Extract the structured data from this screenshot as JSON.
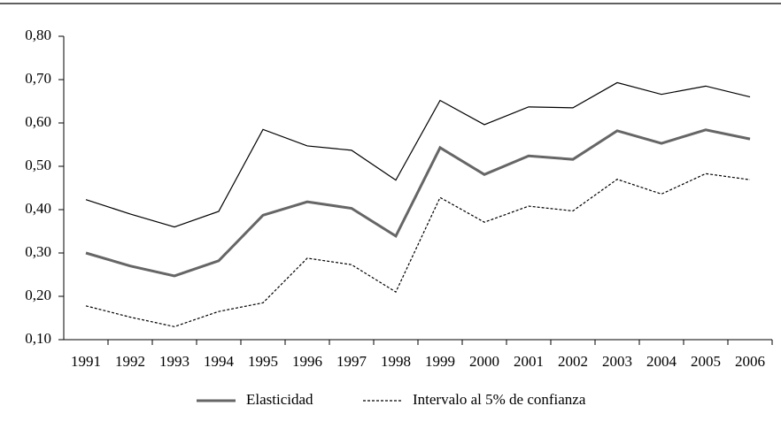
{
  "chart_data": {
    "type": "line",
    "categories": [
      "1991",
      "1992",
      "1993",
      "1994",
      "1995",
      "1996",
      "1997",
      "1998",
      "1999",
      "2000",
      "2001",
      "2002",
      "2003",
      "2004",
      "2005",
      "2006"
    ],
    "series": [
      {
        "name": "Elasticidad",
        "color": "#666666",
        "values": [
          0.3,
          0.27,
          0.247,
          0.282,
          0.387,
          0.418,
          0.403,
          0.339,
          0.543,
          0.481,
          0.524,
          0.516,
          0.582,
          0.553,
          0.584,
          0.563
        ]
      },
      {
        "color": "#000000",
        "values": [
          0.423,
          0.39,
          0.36,
          0.396,
          0.585,
          0.547,
          0.537,
          0.468,
          0.652,
          0.596,
          0.637,
          0.635,
          0.693,
          0.666,
          0.685,
          0.66
        ]
      },
      {
        "name": "Intervalo al 5% de confianza",
        "color": "#000000",
        "dashed": true,
        "values": [
          0.178,
          0.152,
          0.13,
          0.165,
          0.185,
          0.288,
          0.273,
          0.21,
          0.428,
          0.371,
          0.408,
          0.397,
          0.47,
          0.436,
          0.483,
          0.469
        ]
      }
    ],
    "ylim": [
      0.1,
      0.8
    ],
    "yticks": [
      {
        "value": 0.1,
        "label": "0,10"
      },
      {
        "value": 0.2,
        "label": "0,20"
      },
      {
        "value": 0.3,
        "label": "0,30"
      },
      {
        "value": 0.4,
        "label": "0,40"
      },
      {
        "value": 0.5,
        "label": "0,50"
      },
      {
        "value": 0.6,
        "label": "0,60"
      },
      {
        "value": 0.7,
        "label": "0,70"
      },
      {
        "value": 0.8,
        "label": "0,80"
      }
    ],
    "grid": false
  }
}
